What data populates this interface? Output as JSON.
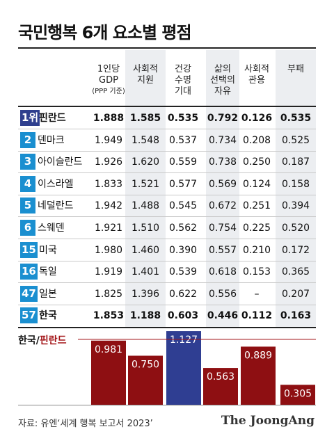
{
  "title": "국민행복 6개 요소별 평점",
  "columns": [
    {
      "label": "1인당\nGDP",
      "sub": "(PPP 기준)"
    },
    {
      "label": "사회적\n지원"
    },
    {
      "label": "건강\n수명\n기대"
    },
    {
      "label": "삶의\n선택의\n자유"
    },
    {
      "label": "사회적\n관용"
    },
    {
      "label": "부패"
    }
  ],
  "rows": [
    {
      "rank": "1위",
      "country": "핀란드",
      "values": [
        "1.888",
        "1.585",
        "0.535",
        "0.792",
        "0.126",
        "0.535"
      ],
      "bold": true,
      "top": true
    },
    {
      "rank": "2",
      "country": "덴마크",
      "values": [
        "1.949",
        "1.548",
        "0.537",
        "0.734",
        "0.208",
        "0.525"
      ]
    },
    {
      "rank": "3",
      "country": "아이슬란드",
      "values": [
        "1.926",
        "1.620",
        "0.559",
        "0.738",
        "0.250",
        "0.187"
      ]
    },
    {
      "rank": "4",
      "country": "이스라엘",
      "values": [
        "1.833",
        "1.521",
        "0.577",
        "0.569",
        "0.124",
        "0.158"
      ]
    },
    {
      "rank": "5",
      "country": "네덜란드",
      "values": [
        "1.942",
        "1.488",
        "0.545",
        "0.672",
        "0.251",
        "0.394"
      ]
    },
    {
      "rank": "6",
      "country": "스웨덴",
      "values": [
        "1.921",
        "1.510",
        "0.562",
        "0.754",
        "0.225",
        "0.520"
      ]
    },
    {
      "rank": "15",
      "country": "미국",
      "values": [
        "1.980",
        "1.460",
        "0.390",
        "0.557",
        "0.210",
        "0.172"
      ]
    },
    {
      "rank": "16",
      "country": "독일",
      "values": [
        "1.919",
        "1.401",
        "0.539",
        "0.618",
        "0.153",
        "0.365"
      ]
    },
    {
      "rank": "47",
      "country": "일본",
      "values": [
        "1.825",
        "1.396",
        "0.622",
        "0.556",
        "–",
        "0.207"
      ]
    },
    {
      "rank": "57",
      "country": "한국",
      "values": [
        "1.853",
        "1.188",
        "0.603",
        "0.446",
        "0.112",
        "0.163"
      ],
      "bold": true
    }
  ],
  "legend": {
    "korea": "한국",
    "slash": "/",
    "finland": "핀란드"
  },
  "chart_data": {
    "type": "bar",
    "categories": [
      "1인당 GDP",
      "사회적 지원",
      "건강 수명 기대",
      "삶의 선택의 자유",
      "사회적 관용",
      "부패"
    ],
    "values": [
      0.981,
      0.75,
      1.127,
      0.563,
      0.889,
      0.305
    ],
    "labels": [
      "0.981",
      "0.750",
      "1.127",
      "0.563",
      "0.889",
      "0.305"
    ],
    "reference": 1.0,
    "colors": {
      "default": "#8e0f12",
      "highlight": "#2f3e92",
      "reference": "#a31518"
    },
    "highlight_index": 2
  },
  "source": "자료: 유엔‘세계 행복 보고서 2023’",
  "brand": "The JoongAng",
  "colors": {
    "rank_top": "#2f3f8e",
    "rank": "#1a8fd0",
    "shade": "#eceef1"
  }
}
